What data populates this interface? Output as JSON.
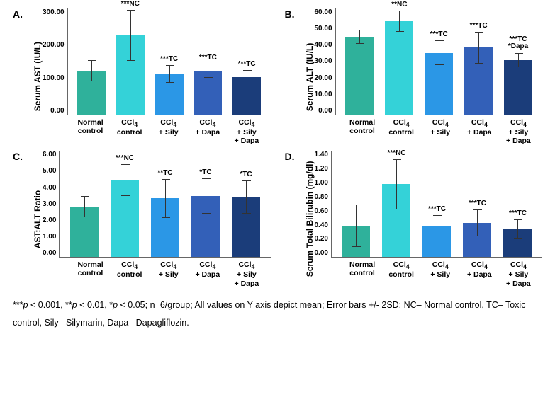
{
  "categories_html": [
    "Normal<br>control",
    "CCl<sub>4</sub><br>control",
    "CCl<sub>4</sub><br>+ Sily",
    "CCl<sub>4</sub><br>+ Dapa",
    "CCl<sub>4</sub><br>+ Sily<br>+ Dapa"
  ],
  "bar_colors": [
    "#2fb19b",
    "#34d2d8",
    "#2b97e6",
    "#3360b8",
    "#1b3d7a"
  ],
  "panels": {
    "A": {
      "letter": "A.",
      "y_label": "Serum AST (IU/L)",
      "ymax": 300,
      "ytick_step": 100,
      "tick_decimals": 2,
      "values": [
        125,
        225,
        115,
        125,
        107
      ],
      "err": [
        30,
        72,
        25,
        20,
        20
      ],
      "sig": [
        "",
        "***NC",
        "***TC",
        "***TC",
        "***TC"
      ]
    },
    "B": {
      "letter": "B.",
      "y_label": "Serum ALT (IU/L)",
      "ymax": 60,
      "ytick_step": 10,
      "tick_decimals": 2,
      "values": [
        44,
        53,
        35,
        38,
        31
      ],
      "err": [
        4,
        6,
        7,
        9,
        4
      ],
      "sig": [
        "",
        "**NC",
        "***TC",
        "***TC",
        "***TC<br>*Dapa"
      ]
    },
    "C": {
      "letter": "C.",
      "y_label": "AST:ALT Ratio",
      "ymax": 6,
      "ytick_step": 1,
      "tick_decimals": 2,
      "values": [
        2.85,
        4.35,
        3.32,
        3.45,
        3.4
      ],
      "err": [
        0.6,
        0.9,
        1.1,
        1.0,
        0.95
      ],
      "sig": [
        "",
        "***NC",
        "**TC",
        "*TC",
        "*TC"
      ]
    },
    "D": {
      "letter": "D.",
      "y_label": "Serum Total Bilirubin (mg/dl)",
      "ymax": 1.4,
      "ytick_step": 0.2,
      "tick_decimals": 2,
      "values": [
        0.41,
        0.96,
        0.4,
        0.45,
        0.37
      ],
      "err": [
        0.28,
        0.33,
        0.15,
        0.18,
        0.13
      ],
      "sig": [
        "",
        "***NC",
        "***TC",
        "***TC",
        "***TC"
      ]
    }
  },
  "footnote_html": "***<span class=\"p\">p</span> &lt; 0.001, **<span class=\"p\">p</span> &lt; 0.01, *<span class=\"p\">p</span> &lt; 0.05; n=6/group; All values on Y axis depict mean; Error bars +/- 2SD; NC&ndash; Normal control, TC&ndash; Toxic control, Sily&ndash; Silymarin, Dapa&ndash; Dapagliflozin."
}
